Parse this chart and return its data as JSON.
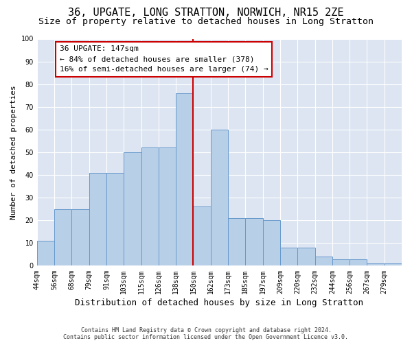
{
  "title": "36, UPGATE, LONG STRATTON, NORWICH, NR15 2ZE",
  "subtitle": "Size of property relative to detached houses in Long Stratton",
  "xlabel": "Distribution of detached houses by size in Long Stratton",
  "ylabel": "Number of detached properties",
  "footnote1": "Contains HM Land Registry data © Crown copyright and database right 2024.",
  "footnote2": "Contains public sector information licensed under the Open Government Licence v3.0.",
  "annotation_line1": "36 UPGATE: 147sqm",
  "annotation_line2": "← 84% of detached houses are smaller (378)",
  "annotation_line3": "16% of semi-detached houses are larger (74) →",
  "bar_labels": [
    "44sqm",
    "56sqm",
    "68sqm",
    "79sqm",
    "91sqm",
    "103sqm",
    "115sqm",
    "126sqm",
    "138sqm",
    "150sqm",
    "162sqm",
    "173sqm",
    "185sqm",
    "197sqm",
    "209sqm",
    "220sqm",
    "232sqm",
    "244sqm",
    "256sqm",
    "267sqm",
    "279sqm"
  ],
  "bar_values": [
    11,
    25,
    25,
    41,
    41,
    50,
    52,
    52,
    76,
    26,
    60,
    21,
    21,
    20,
    8,
    8,
    4,
    3,
    3,
    1,
    1
  ],
  "bar_color": "#b8cfe8",
  "bar_edge_color": "#6699cc",
  "vline_x": 9.0,
  "vline_color": "#cc0000",
  "ylim": [
    0,
    100
  ],
  "yticks": [
    0,
    10,
    20,
    30,
    40,
    50,
    60,
    70,
    80,
    90,
    100
  ],
  "background_color": "#dde5f2",
  "grid_color": "#ffffff",
  "title_fontsize": 11,
  "subtitle_fontsize": 9.5,
  "xlabel_fontsize": 9,
  "ylabel_fontsize": 8,
  "annotation_fontsize": 8,
  "tick_fontsize": 7,
  "footnote_fontsize": 6
}
